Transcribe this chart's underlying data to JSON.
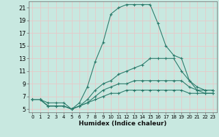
{
  "title": "",
  "xlabel": "Humidex (Indice chaleur)",
  "ylabel": "",
  "bg_color": "#c8e8e0",
  "grid_color": "#e8c8c8",
  "line_color": "#2a7a6a",
  "xlim": [
    -0.5,
    23.5
  ],
  "ylim": [
    4.5,
    22
  ],
  "xticks": [
    0,
    1,
    2,
    3,
    4,
    5,
    6,
    7,
    8,
    9,
    10,
    11,
    12,
    13,
    14,
    15,
    16,
    17,
    18,
    19,
    20,
    21,
    22,
    23
  ],
  "yticks": [
    5,
    7,
    9,
    11,
    13,
    15,
    17,
    19,
    21
  ],
  "lines": [
    {
      "x": [
        0,
        1,
        2,
        3,
        4,
        5,
        6,
        7,
        8,
        9,
        10,
        11,
        12,
        13,
        14,
        15,
        16,
        17,
        18,
        19,
        20,
        21,
        22,
        23
      ],
      "y": [
        6.5,
        6.5,
        6.0,
        6.0,
        6.0,
        5.0,
        6.0,
        8.5,
        12.5,
        15.5,
        20.0,
        21.0,
        21.5,
        21.5,
        21.5,
        21.5,
        18.5,
        15.0,
        13.5,
        13.0,
        9.5,
        8.0,
        8.0,
        8.0
      ]
    },
    {
      "x": [
        0,
        1,
        2,
        3,
        4,
        5,
        6,
        7,
        8,
        9,
        10,
        11,
        12,
        13,
        14,
        15,
        16,
        17,
        18,
        19,
        20,
        21,
        22,
        23
      ],
      "y": [
        6.5,
        6.5,
        5.5,
        5.5,
        5.5,
        5.0,
        5.5,
        6.5,
        8.0,
        9.0,
        9.5,
        10.5,
        11.0,
        11.5,
        12.0,
        13.0,
        13.0,
        13.0,
        13.0,
        11.0,
        9.5,
        8.5,
        8.0,
        8.0
      ]
    },
    {
      "x": [
        0,
        1,
        2,
        3,
        4,
        5,
        6,
        7,
        8,
        9,
        10,
        11,
        12,
        13,
        14,
        15,
        16,
        17,
        18,
        19,
        20,
        21,
        22,
        23
      ],
      "y": [
        6.5,
        6.5,
        5.5,
        5.5,
        5.5,
        5.0,
        5.5,
        6.0,
        7.0,
        8.0,
        8.5,
        9.0,
        9.0,
        9.5,
        9.5,
        9.5,
        9.5,
        9.5,
        9.5,
        9.5,
        8.5,
        8.0,
        7.5,
        7.5
      ]
    },
    {
      "x": [
        0,
        1,
        2,
        3,
        4,
        5,
        6,
        7,
        8,
        9,
        10,
        11,
        12,
        13,
        14,
        15,
        16,
        17,
        18,
        19,
        20,
        21,
        22,
        23
      ],
      "y": [
        6.5,
        6.5,
        5.5,
        5.5,
        5.5,
        5.0,
        5.5,
        6.0,
        6.5,
        7.0,
        7.5,
        7.5,
        8.0,
        8.0,
        8.0,
        8.0,
        8.0,
        8.0,
        8.0,
        8.0,
        7.5,
        7.5,
        7.5,
        7.5
      ]
    }
  ]
}
